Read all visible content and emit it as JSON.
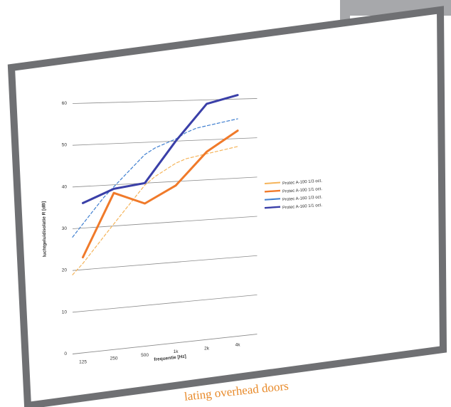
{
  "caption": "lating overhead doors",
  "colors": {
    "frame": "#6f7073",
    "back_card": "#a7a8ab",
    "caption": "#e88a2a",
    "grid": "#8a8a8a"
  },
  "chart_data": {
    "type": "line",
    "title": "",
    "xlabel": "frequentie [Hz]",
    "ylabel": "luchtgeluidisolatie R [dB]",
    "categories": [
      "125",
      "250",
      "500",
      "1k",
      "2k",
      "4k"
    ],
    "ylim": [
      0,
      60
    ],
    "yticks": [
      0,
      10,
      20,
      30,
      40,
      50,
      60
    ],
    "grid": true,
    "legend_position": "right",
    "series": [
      {
        "name": "Protec A-100 1/3 oct.",
        "color": "#f5b45a",
        "width": 1.2,
        "dashed": true,
        "x": [
          "100",
          "125",
          "160",
          "200",
          "250",
          "315",
          "400",
          "500",
          "630",
          "800",
          "1k",
          "1.25k",
          "1.6k",
          "2k",
          "2.5k",
          "3.15k",
          "4k"
        ],
        "values": [
          19,
          21.5,
          24.5,
          27.5,
          30.5,
          33.5,
          36.5,
          39.5,
          41.5,
          43,
          44.5,
          45.5,
          46,
          46.5,
          47,
          47.5,
          48
        ]
      },
      {
        "name": "Protec A-100 1/1 oct.",
        "color": "#f07a2a",
        "width": 3,
        "dashed": false,
        "x": [
          "125",
          "250",
          "500",
          "1k",
          "2k",
          "4k"
        ],
        "values": [
          23,
          38,
          35,
          39,
          47,
          52
        ]
      },
      {
        "name": "Protec A-160 1/3 oct.",
        "color": "#3f7fd0",
        "width": 1.2,
        "dashed": true,
        "x": [
          "100",
          "125",
          "160",
          "200",
          "250",
          "315",
          "400",
          "500",
          "630",
          "800",
          "1k",
          "1.25k",
          "1.6k",
          "2k",
          "2.5k",
          "3.15k",
          "4k"
        ],
        "values": [
          28,
          31,
          34,
          37,
          39.5,
          42,
          44.5,
          47,
          48.5,
          49.5,
          50.5,
          52,
          53,
          53.5,
          54,
          54.5,
          55
        ]
      },
      {
        "name": "Protec A-160 1/1 oct.",
        "color": "#3a3fa8",
        "width": 3,
        "dashed": false,
        "x": [
          "125",
          "250",
          "500",
          "1k",
          "2k",
          "4k"
        ],
        "values": [
          36,
          39,
          40,
          50,
          59,
          61
        ]
      }
    ]
  }
}
